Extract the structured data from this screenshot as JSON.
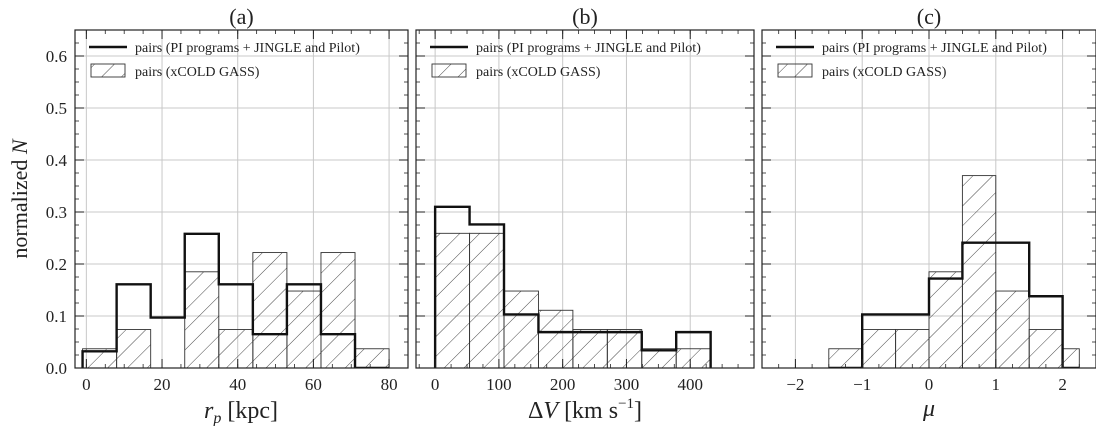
{
  "chart_data": [
    {
      "type": "histogram",
      "panel_label": "(a)",
      "xlabel": "r_p [kpc]",
      "ylabel": "normalized N",
      "xlim": [
        -3,
        85
      ],
      "ylim": [
        0,
        0.65
      ],
      "xticks": [
        0,
        20,
        40,
        60,
        80
      ],
      "yticks": [
        0.0,
        0.1,
        0.2,
        0.3,
        0.4,
        0.5,
        0.6
      ],
      "grid": true,
      "legend_position": "top-left",
      "series": [
        {
          "name": "pairs (PI programs + JINGLE and Pilot)",
          "style": "step-line",
          "bin_edges": [
            -1,
            8,
            17,
            26,
            35,
            44,
            53,
            62,
            71,
            80
          ],
          "values": [
            0.032,
            0.161,
            0.097,
            0.258,
            0.161,
            0.065,
            0.161,
            0.065,
            0.0
          ]
        },
        {
          "name": "pairs (xCOLD GASS)",
          "style": "hatched",
          "bin_edges": [
            -1,
            8,
            17,
            26,
            35,
            44,
            53,
            62,
            71,
            80
          ],
          "values": [
            0.037,
            0.074,
            0.0,
            0.185,
            0.074,
            0.222,
            0.148,
            0.222,
            0.037
          ]
        }
      ]
    },
    {
      "type": "histogram",
      "panel_label": "(b)",
      "xlabel": "ΔV [km s⁻¹]",
      "xlim": [
        -30,
        500
      ],
      "ylim": [
        0,
        0.65
      ],
      "xticks": [
        0,
        100,
        200,
        300,
        400
      ],
      "grid": true,
      "legend_position": "top-left",
      "series": [
        {
          "name": "pairs (PI programs + JINGLE and Pilot)",
          "style": "step-line",
          "bin_edges": [
            0,
            54,
            108,
            162,
            216,
            270,
            324,
            378,
            432
          ],
          "values": [
            0.31,
            0.276,
            0.103,
            0.069,
            0.069,
            0.069,
            0.034,
            0.069
          ]
        },
        {
          "name": "pairs (xCOLD GASS)",
          "style": "hatched",
          "bin_edges": [
            0,
            54,
            108,
            162,
            216,
            270,
            324,
            378,
            432
          ],
          "values": [
            0.259,
            0.259,
            0.148,
            0.111,
            0.074,
            0.074,
            0.037,
            0.037
          ]
        }
      ]
    },
    {
      "type": "histogram",
      "panel_label": "(c)",
      "xlabel": "μ",
      "xlim": [
        -2.5,
        2.5
      ],
      "ylim": [
        0,
        0.65
      ],
      "xticks": [
        -2,
        -1,
        0,
        1,
        2
      ],
      "grid": true,
      "legend_position": "top-left",
      "series": [
        {
          "name": "pairs (PI programs + JINGLE and Pilot)",
          "style": "step-line",
          "bin_edges": [
            -1.5,
            -1.0,
            -0.5,
            0.0,
            0.5,
            1.0,
            1.5,
            2.0,
            2.25
          ],
          "values": [
            0.0,
            0.103,
            0.103,
            0.172,
            0.241,
            0.241,
            0.138,
            0.0
          ]
        },
        {
          "name": "pairs (xCOLD GASS)",
          "style": "hatched",
          "bin_edges": [
            -1.5,
            -1.0,
            -0.5,
            0.0,
            0.5,
            1.0,
            1.5,
            2.0,
            2.25
          ],
          "values": [
            0.037,
            0.074,
            0.074,
            0.185,
            0.37,
            0.148,
            0.074,
            0.037
          ]
        }
      ]
    }
  ]
}
